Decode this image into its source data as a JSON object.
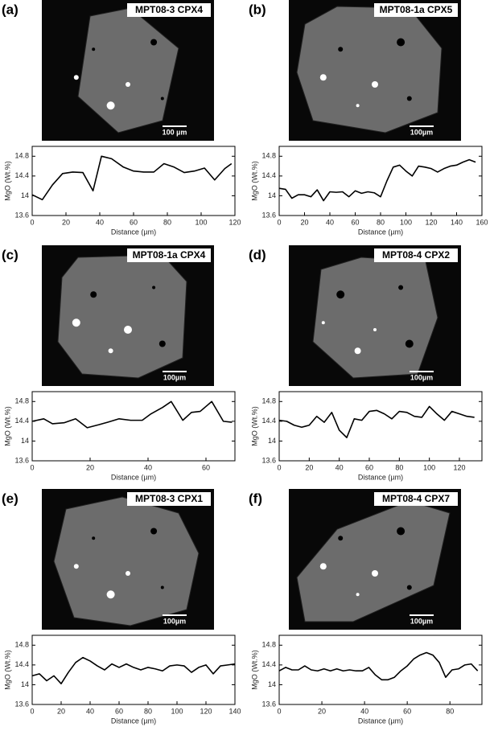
{
  "chart_data": [
    {
      "type": "line",
      "panel_label": "(a)",
      "image_label": "MPT08-3 CPX4",
      "scale_label": "100 µm",
      "x_label": "Distance (µm)",
      "y_label": "MgO (Wt.%)",
      "color": "#000000",
      "x": [
        0,
        6,
        12,
        18,
        24,
        30,
        36,
        41,
        47,
        54,
        60,
        66,
        72,
        78,
        84,
        90,
        96,
        102,
        108,
        114,
        118
      ],
      "values": [
        14.02,
        13.92,
        14.22,
        14.45,
        14.48,
        14.47,
        14.1,
        14.8,
        14.75,
        14.58,
        14.5,
        14.48,
        14.48,
        14.65,
        14.58,
        14.47,
        14.5,
        14.56,
        14.32,
        14.55,
        14.65
      ],
      "xlim": [
        0,
        120
      ],
      "xticks": [
        0,
        20,
        40,
        60,
        80,
        100,
        120
      ],
      "ylim": [
        13.6,
        15.0
      ],
      "yticks": [
        13.6,
        14,
        14.4,
        14.8
      ]
    },
    {
      "type": "line",
      "panel_label": "(b)",
      "image_label": "MPT08-1a CPX5",
      "scale_label": "100µm",
      "x_label": "Distance (µm)",
      "y_label": "MgO (Wt.%)",
      "color": "#000000",
      "x": [
        0,
        5,
        10,
        15,
        20,
        25,
        30,
        35,
        40,
        45,
        50,
        55,
        60,
        65,
        70,
        75,
        80,
        85,
        90,
        95,
        100,
        105,
        110,
        115,
        120,
        125,
        130,
        135,
        140,
        145,
        150,
        155
      ],
      "values": [
        14.15,
        14.13,
        13.95,
        14.02,
        14.02,
        13.98,
        14.12,
        13.9,
        14.08,
        14.07,
        14.08,
        13.98,
        14.1,
        14.05,
        14.08,
        14.06,
        13.98,
        14.3,
        14.58,
        14.62,
        14.5,
        14.4,
        14.6,
        14.58,
        14.55,
        14.48,
        14.55,
        14.6,
        14.62,
        14.68,
        14.73,
        14.68
      ],
      "xlim": [
        0,
        160
      ],
      "xticks": [
        0,
        20,
        40,
        60,
        80,
        100,
        120,
        140,
        160
      ],
      "ylim": [
        13.6,
        15.0
      ],
      "yticks": [
        13.6,
        14,
        14.4,
        14.8
      ]
    },
    {
      "type": "line",
      "panel_label": "(c)",
      "image_label": "MPT08-1a CPX4",
      "scale_label": "100µm",
      "x_label": "Distance (µm)",
      "y_label": "MgO (Wt.%)",
      "color": "#000000",
      "x": [
        0,
        4,
        7,
        11,
        15,
        19,
        23,
        26,
        30,
        34,
        38,
        41,
        45,
        48,
        52,
        55,
        58,
        62,
        66,
        69
      ],
      "values": [
        14.4,
        14.45,
        14.35,
        14.37,
        14.45,
        14.27,
        14.33,
        14.38,
        14.45,
        14.42,
        14.42,
        14.55,
        14.68,
        14.8,
        14.42,
        14.58,
        14.6,
        14.8,
        14.4,
        14.38
      ],
      "xlim": [
        0,
        70
      ],
      "xticks": [
        0,
        20,
        40,
        60
      ],
      "ylim": [
        13.6,
        15.0
      ],
      "yticks": [
        13.6,
        14,
        14.4,
        14.8
      ]
    },
    {
      "type": "line",
      "panel_label": "(d)",
      "image_label": "MPT08-4 CPX2",
      "scale_label": "100µm",
      "x_label": "Distance (µm)",
      "y_label": "MgO (Wt.%)",
      "color": "#000000",
      "x": [
        0,
        5,
        10,
        15,
        20,
        25,
        30,
        35,
        40,
        45,
        50,
        55,
        60,
        65,
        70,
        75,
        80,
        85,
        90,
        95,
        100,
        105,
        110,
        115,
        120,
        125,
        130
      ],
      "values": [
        14.42,
        14.4,
        14.32,
        14.28,
        14.32,
        14.5,
        14.38,
        14.58,
        14.22,
        14.07,
        14.45,
        14.42,
        14.6,
        14.62,
        14.55,
        14.45,
        14.6,
        14.58,
        14.5,
        14.48,
        14.7,
        14.55,
        14.42,
        14.6,
        14.55,
        14.5,
        14.48
      ],
      "xlim": [
        0,
        135
      ],
      "xticks": [
        0,
        20,
        40,
        60,
        80,
        100,
        120
      ],
      "ylim": [
        13.6,
        15.0
      ],
      "yticks": [
        13.6,
        14,
        14.4,
        14.8
      ]
    },
    {
      "type": "line",
      "panel_label": "(e)",
      "image_label": "MPT08-3 CPX1",
      "scale_label": "100µm",
      "x_label": "Distance (µm)",
      "y_label": "MgO (Wt.%)",
      "color": "#000000",
      "x": [
        0,
        5,
        10,
        15,
        20,
        25,
        30,
        35,
        40,
        45,
        50,
        55,
        60,
        65,
        70,
        75,
        80,
        85,
        90,
        95,
        100,
        105,
        110,
        115,
        120,
        125,
        130,
        135,
        140
      ],
      "values": [
        14.18,
        14.22,
        14.08,
        14.18,
        14.02,
        14.25,
        14.45,
        14.55,
        14.48,
        14.38,
        14.3,
        14.42,
        14.35,
        14.42,
        14.35,
        14.3,
        14.35,
        14.32,
        14.28,
        14.38,
        14.4,
        14.38,
        14.25,
        14.35,
        14.4,
        14.22,
        14.38,
        14.4,
        14.42
      ],
      "xlim": [
        0,
        140
      ],
      "xticks": [
        0,
        20,
        40,
        60,
        80,
        100,
        120,
        140
      ],
      "ylim": [
        13.6,
        15.0
      ],
      "yticks": [
        13.6,
        14,
        14.4,
        14.8
      ]
    },
    {
      "type": "line",
      "panel_label": "(f)",
      "image_label": "MPT08-4 CPX7",
      "scale_label": "100µm",
      "x_label": "Distance (µm)",
      "y_label": "MgO (Wt.%)",
      "color": "#000000",
      "x": [
        0,
        3,
        6,
        9,
        12,
        15,
        18,
        21,
        24,
        27,
        30,
        33,
        36,
        39,
        42,
        45,
        48,
        51,
        54,
        57,
        60,
        63,
        66,
        69,
        72,
        75,
        78,
        81,
        84,
        87,
        90,
        93
      ],
      "values": [
        14.28,
        14.35,
        14.3,
        14.3,
        14.38,
        14.3,
        14.28,
        14.32,
        14.28,
        14.32,
        14.28,
        14.3,
        14.28,
        14.28,
        14.35,
        14.2,
        14.1,
        14.1,
        14.15,
        14.28,
        14.38,
        14.52,
        14.6,
        14.65,
        14.6,
        14.45,
        14.15,
        14.3,
        14.32,
        14.4,
        14.42,
        14.28
      ],
      "xlim": [
        0,
        95
      ],
      "xticks": [
        0,
        20,
        40,
        60,
        80
      ],
      "ylim": [
        13.6,
        15.0
      ],
      "yticks": [
        13.6,
        14,
        14.4,
        14.8
      ]
    }
  ]
}
